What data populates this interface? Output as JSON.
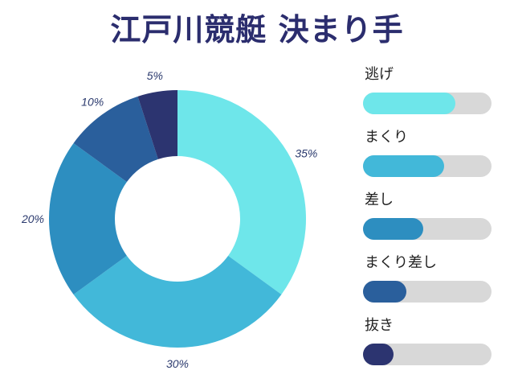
{
  "title": "江戸川競艇 決まり手",
  "chart_data": {
    "type": "pie",
    "title": "江戸川競艇 決まり手",
    "donut": true,
    "categories": [
      "逃げ",
      "まくり",
      "差し",
      "まくり差し",
      "抜き"
    ],
    "values": [
      35,
      30,
      20,
      10,
      5
    ],
    "labels": [
      "35%",
      "30%",
      "20%",
      "10%",
      "5%"
    ],
    "colors": [
      "#6ee6ea",
      "#42b8d9",
      "#2d8ec0",
      "#2a5f9c",
      "#2c3470"
    ],
    "legend": "right",
    "legend_levels": [
      0.72,
      0.63,
      0.47,
      0.34,
      0.24
    ]
  }
}
